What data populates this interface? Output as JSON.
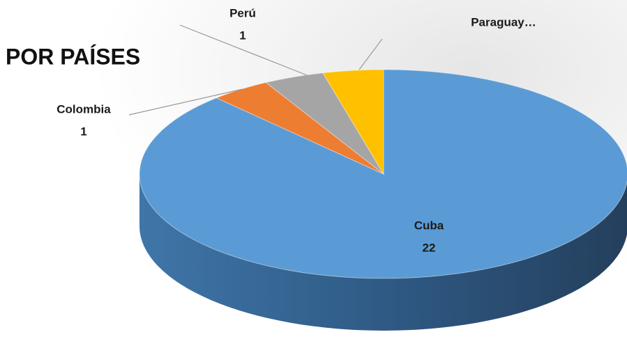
{
  "chart_data": {
    "type": "pie3d",
    "title": "POR PAÍSES",
    "categories": [
      "Cuba",
      "Colombia",
      "Perú",
      "Paraguay…"
    ],
    "values": [
      22,
      1,
      1,
      1
    ],
    "value_labels": [
      "22",
      "1",
      "1",
      null
    ],
    "colors": [
      "#5b9bd5",
      "#ed7d31",
      "#a5a5a5",
      "#ffc000"
    ]
  }
}
